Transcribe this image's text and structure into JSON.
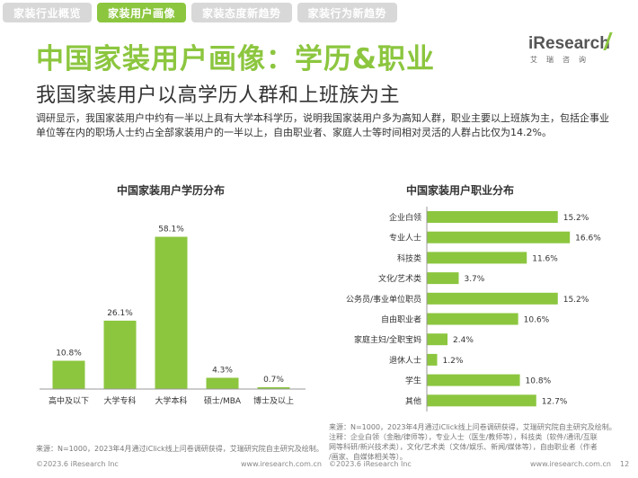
{
  "tabs": [
    {
      "label": "家装行业概览",
      "active": false
    },
    {
      "label": "家装用户画像",
      "active": true
    },
    {
      "label": "家装态度新趋势",
      "active": false
    },
    {
      "label": "家装行为新趋势",
      "active": false
    }
  ],
  "logo": {
    "main": "iResearch",
    "sub": "艾瑞咨询"
  },
  "title": "中国家装用户画像：学历&职业",
  "subtitle": "我国家装用户以高学历人群和上班族为主",
  "summary": "调研显示，我国家装用户中约有一半以上具有大学本科学历，说明我国家装用户多为高知人群，职业主要以上班族为主，包括企事业单位等在内的职场人士约占全部家装用户的一半以上，自由职业者、家庭人士等时间相对灵活的人群占比仅为14.2%。",
  "colors": {
    "accent": "#8cc63f"
  },
  "chart_data": [
    {
      "type": "bar",
      "title": "中国家装用户学历分布",
      "categories": [
        "高中及以下",
        "大学专科",
        "大学本科",
        "硕士/MBA",
        "博士及以上"
      ],
      "values": [
        10.8,
        26.1,
        58.1,
        4.3,
        0.7
      ],
      "value_labels": [
        "10.8%",
        "26.1%",
        "58.1%",
        "4.3%",
        "0.7%"
      ],
      "ylim": [
        0,
        60
      ],
      "grid": false
    },
    {
      "type": "bar",
      "orientation": "horizontal",
      "title": "中国家装用户职业分布",
      "categories": [
        "企业白领",
        "专业人士",
        "科技类",
        "文化/艺术类",
        "公务员/事业单位职员",
        "自由职业者",
        "家庭主妇/全职宝妈",
        "退休人士",
        "学生",
        "其他"
      ],
      "values": [
        15.2,
        16.6,
        11.6,
        3.7,
        15.2,
        10.6,
        2.4,
        1.2,
        10.8,
        12.7
      ],
      "value_labels": [
        "15.2%",
        "16.6%",
        "11.6%",
        "3.7%",
        "15.2%",
        "10.6%",
        "2.4%",
        "1.2%",
        "10.8%",
        "12.7%"
      ],
      "xlim": [
        0,
        17
      ],
      "grid": false
    }
  ],
  "source_left": "来源：N=1000，2023年4月通过iClick线上问卷调研获得，艾瑞研究院自主研究及绘制。",
  "source_right": [
    "来源：N=1000，2023年4月通过iClick线上问卷调研获得，艾瑞研究院自主研究及绘制。",
    "注释：企业白领（金融/律师等），专业人士（医生/教师等），科技类（软件/通讯/互联",
    "网等科研/新兴技术类），文化/艺术类（文体/娱乐、新闻/媒体等），自由职业者（作者",
    "/画家、自媒体相关等）。"
  ],
  "footer": {
    "left_copyright": "©2023.6 iResearch Inc",
    "left_url": "www.iresearch.com.cn",
    "right_copyright": "©2023.6 iResearch Inc",
    "right_url": "www.iresearch.com.cn",
    "page_number": "12"
  }
}
